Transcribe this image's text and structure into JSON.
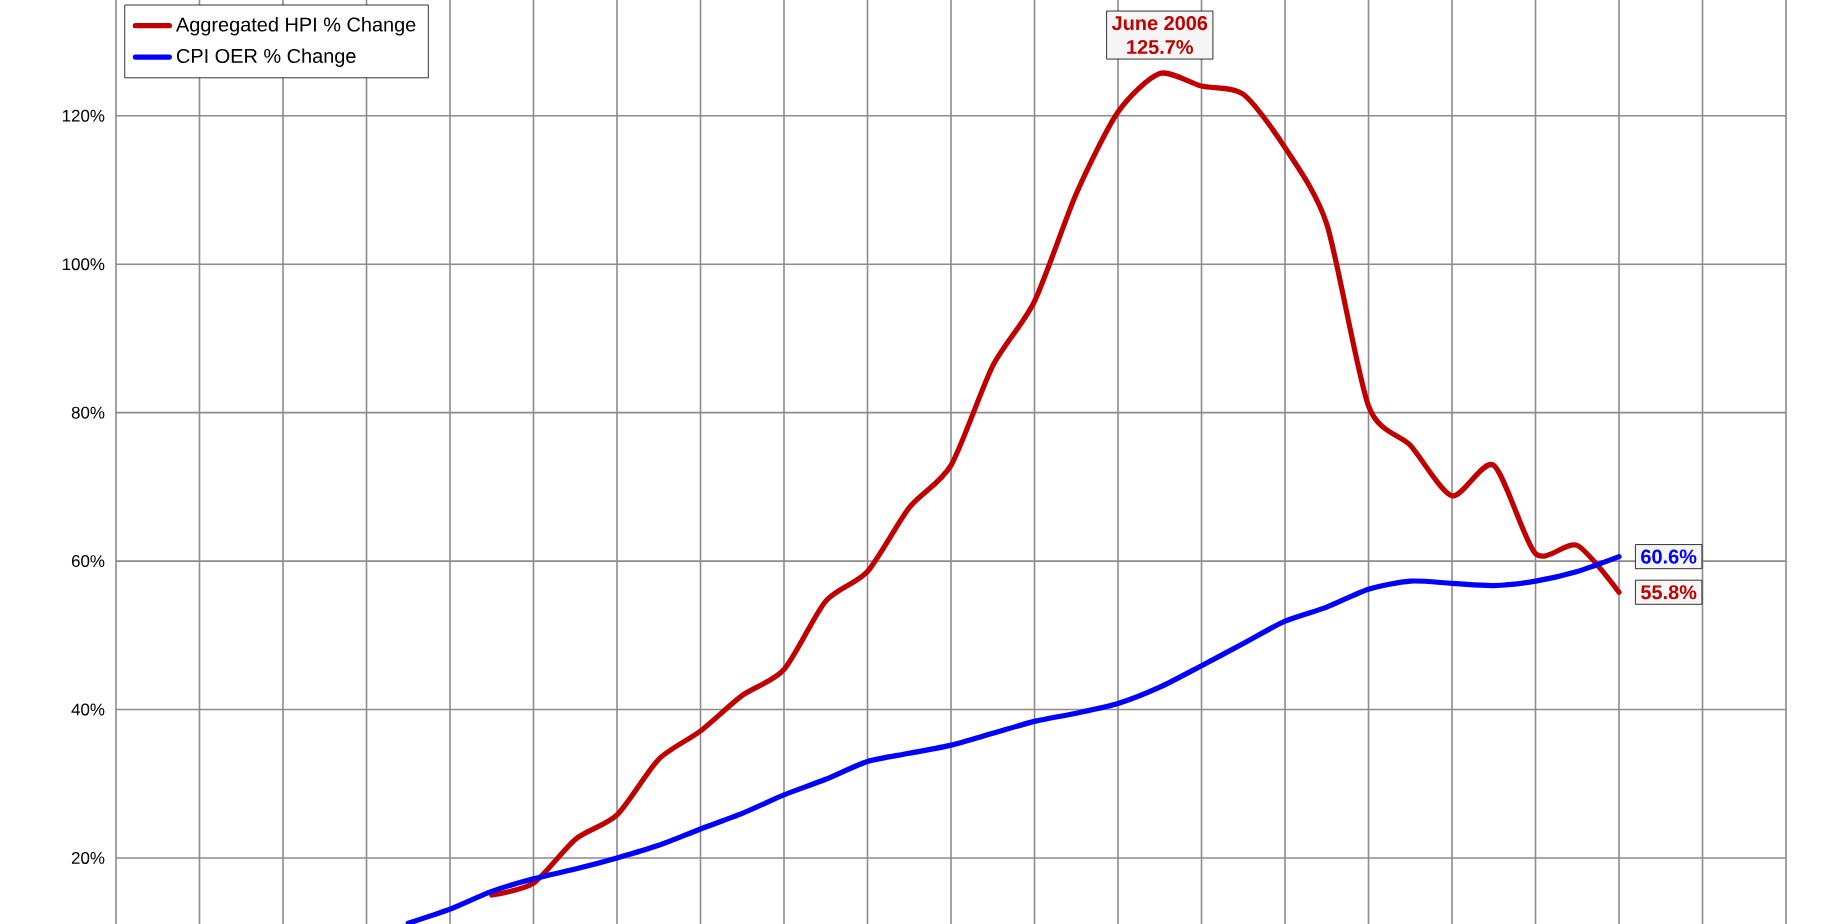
{
  "chart_data": {
    "type": "line",
    "categories": [
      null,
      null,
      null,
      null,
      null,
      null,
      null,
      null,
      null,
      null,
      null,
      null,
      null,
      null,
      null,
      null,
      null,
      null,
      null,
      null,
      null,
      null,
      null,
      null,
      null,
      null,
      null,
      null,
      null,
      null,
      null,
      null,
      null,
      null,
      null,
      null,
      null,
      null,
      null,
      null,
      null
    ],
    "series": [
      {
        "name": "Aggregated HPI % Change",
        "color": "#c00000",
        "values": [
          null,
          null,
          null,
          null,
          null,
          null,
          null,
          null,
          null,
          15.0,
          16.6,
          22.5,
          25.8,
          33.3,
          37.1,
          41.9,
          45.4,
          54.6,
          58.6,
          67.2,
          72.9,
          86.3,
          95.0,
          109.5,
          120.5,
          125.7,
          124.0,
          122.9,
          115.7,
          105.4,
          80.9,
          75.6,
          68.8,
          72.9,
          61.0,
          62.1,
          55.8,
          null,
          null,
          null,
          null
        ]
      },
      {
        "name": "CPI OER % Change",
        "color": "#0000ff",
        "values": [
          null,
          null,
          null,
          null,
          null,
          null,
          null,
          11.2,
          13.1,
          15.5,
          17.2,
          18.5,
          20.0,
          21.7,
          23.9,
          26.0,
          28.5,
          30.6,
          33.0,
          34.1,
          35.2,
          36.8,
          38.4,
          39.5,
          40.8,
          43.0,
          45.9,
          48.9,
          51.9,
          53.8,
          56.2,
          57.3,
          57.0,
          56.7,
          57.3,
          58.6,
          60.6,
          null,
          null,
          null,
          null
        ]
      }
    ],
    "ylim": [
      11.1,
      135.6
    ],
    "yticks": [
      {
        "value": 20,
        "label": "20%"
      },
      {
        "value": 40,
        "label": "40%"
      },
      {
        "value": 60,
        "label": "60%"
      },
      {
        "value": 80,
        "label": "80%"
      },
      {
        "value": 100,
        "label": "100%"
      },
      {
        "value": 120,
        "label": "120%"
      }
    ],
    "grid": true,
    "legend": "top left",
    "annotations": [
      {
        "text": "June 2006",
        "y": 125.7
      },
      {
        "text": "125.7%",
        "y": 125.7
      },
      {
        "text": "60.6%",
        "y": 60.6
      },
      {
        "text": "55.8%",
        "y": 55.8
      }
    ]
  }
}
